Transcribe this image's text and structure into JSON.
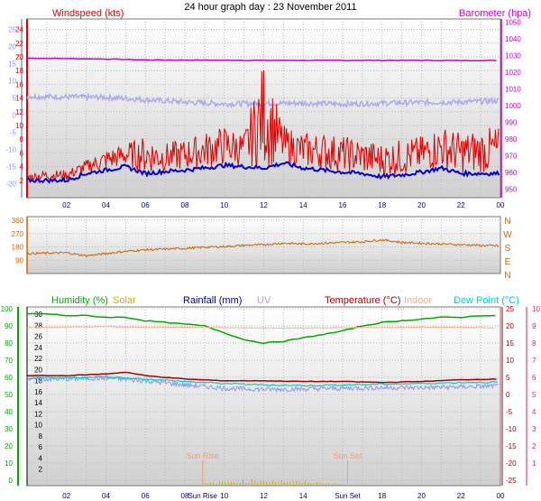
{
  "title": "24 hour graph day : 23 November 2011",
  "colors": {
    "wind": "#e00000",
    "gust_dark": "#0000d0",
    "temp_axis": "#8899ee",
    "baro": "#cc00cc",
    "baro_line": "#aaaaee",
    "dir": "#cc6600",
    "humidity": "#00aa00",
    "solar": "#ccaa00",
    "rainfall": "#000088",
    "uv": "#dd88dd",
    "temperature": "#aa0000",
    "indoor": "#f0b090",
    "dewpoint": "#00cccc",
    "pink_axis": "#dd2266",
    "rain_axis": "#000000",
    "sun": "#f0a070"
  },
  "chart_data": [
    {
      "type": "line",
      "title": "24 hour graph day : 23 November 2011",
      "left_label": "Windspeed (kts)",
      "right_label": "Barometer (hpa)",
      "wind_ticks": [
        "2",
        "4",
        "6",
        "8",
        "10",
        "12",
        "14",
        "16",
        "18",
        "20",
        "22",
        "24"
      ],
      "temp_ticks": [
        "-20",
        "-15",
        "-10",
        "-5",
        "0",
        "5",
        "10",
        "15",
        "20",
        "25"
      ],
      "baro_ticks": [
        "950",
        "960",
        "970",
        "980",
        "990",
        "1000",
        "1010",
        "1020",
        "1030",
        "1040",
        "1050"
      ],
      "x_ticks": [
        "02",
        "04",
        "06",
        "08",
        "10",
        "12",
        "14",
        "16",
        "18",
        "20",
        "22",
        "00"
      ],
      "ylim_wind": [
        0,
        25
      ],
      "ylim_baro": [
        945,
        1052
      ],
      "series": [
        {
          "key": "barometer",
          "unit": "hpa",
          "x": [
            0,
            2,
            4,
            6,
            8,
            10,
            12,
            14,
            16,
            18,
            20,
            22,
            23.9
          ],
          "values": [
            1028.5,
            1028.3,
            1028.0,
            1027.5,
            1027.4,
            1027.3,
            1027.2,
            1027.2,
            1027.2,
            1027.2,
            1027.2,
            1027.1,
            1027.1
          ]
        },
        {
          "key": "temperature_upper",
          "unit": "C",
          "x": [
            0,
            2,
            4,
            6,
            8,
            10,
            12,
            14,
            16,
            18,
            20,
            22,
            23.9
          ],
          "values": [
            5.5,
            5.3,
            5.2,
            4.5,
            3.8,
            3.3,
            3.4,
            3.5,
            3.2,
            3.5,
            3.7,
            3.8,
            4.2
          ]
        },
        {
          "key": "wind_avg",
          "unit": "kts",
          "x": [
            0,
            1,
            2,
            3,
            4,
            5,
            6,
            7,
            8,
            9,
            10,
            11,
            12,
            13,
            14,
            15,
            16,
            17,
            18,
            19,
            20,
            21,
            22,
            23,
            23.9
          ],
          "values": [
            2,
            2,
            2,
            3,
            3.5,
            4,
            3,
            3.3,
            3.5,
            3.8,
            4.2,
            4,
            3.8,
            4.5,
            3.8,
            3.5,
            3.2,
            3,
            2.5,
            2.8,
            3.2,
            3.8,
            3,
            3,
            3
          ]
        },
        {
          "key": "wind_gust",
          "unit": "kts",
          "x": [
            0,
            1,
            2,
            3,
            4,
            5,
            6,
            7,
            8,
            9,
            10,
            11,
            12,
            13,
            14,
            15,
            16,
            17,
            18,
            19,
            20,
            21,
            22,
            23,
            23.9
          ],
          "values": [
            3,
            3.5,
            3.5,
            5,
            6.5,
            7.5,
            8.5,
            7.5,
            8,
            9,
            10,
            9,
            19.5,
            10,
            9,
            9,
            8.5,
            8,
            7.5,
            8,
            8.5,
            10,
            9,
            9.5,
            10
          ]
        }
      ]
    },
    {
      "type": "line",
      "right_label": "N W S E N",
      "dir_ticks": [
        "90",
        "180",
        "270",
        "360"
      ],
      "compass": [
        "N",
        "W",
        "S",
        "E",
        "N"
      ],
      "ylim": [
        0,
        360
      ],
      "series": [
        {
          "key": "wind_direction",
          "unit": "deg",
          "x": [
            0,
            1,
            2,
            3,
            4,
            5,
            6,
            7,
            8,
            9,
            10,
            11,
            12,
            13,
            14,
            15,
            16,
            17,
            18,
            19,
            20,
            21,
            22,
            23,
            23.9
          ],
          "values": [
            135,
            138,
            140,
            120,
            135,
            150,
            160,
            165,
            170,
            178,
            182,
            190,
            195,
            205,
            200,
            205,
            210,
            215,
            228,
            210,
            205,
            200,
            195,
            190,
            188
          ]
        }
      ]
    },
    {
      "type": "line",
      "labels": {
        "humidity": "Humidity (%)",
        "solar": "Solar",
        "rainfall": "Rainfall (mm)",
        "uv": "UV",
        "temperature": "Temperature (°C)",
        "indoor": "Indoor",
        "dewpoint": "Dew Point (°C)"
      },
      "humidity_ticks": [
        "0",
        "10",
        "20",
        "30",
        "40",
        "50",
        "60",
        "70",
        "80",
        "90",
        "100"
      ],
      "rain_ticks": [
        "2",
        "4",
        "6",
        "8",
        "10",
        "12",
        "14",
        "16",
        "18",
        "20",
        "22",
        "24",
        "26",
        "28",
        "30"
      ],
      "temp_ticks": [
        "-25",
        "-20",
        "-15",
        "-10",
        "-5",
        "0",
        "5",
        "10",
        "15",
        "20",
        "25"
      ],
      "uv_ticks": [
        "1",
        "2",
        "3",
        "4",
        "5",
        "6",
        "7",
        "8",
        "9",
        "10"
      ],
      "x_ticks": [
        "02",
        "04",
        "06",
        "08",
        "Sun Rise",
        "10",
        "12",
        "14",
        "Sun Set",
        "18",
        "20",
        "22",
        "00"
      ],
      "sun_rise_label": "Sun Rise",
      "sun_set_label": "Sun Set",
      "sun_rise_hour": 8.9,
      "sun_set_hour": 16.25,
      "ylim_humidity": [
        0,
        100
      ],
      "ylim_temp": [
        -25,
        25
      ],
      "series": [
        {
          "key": "humidity",
          "unit": "%",
          "x": [
            0,
            1,
            2,
            3,
            4,
            5,
            6,
            7,
            8,
            9,
            10,
            11,
            12,
            13,
            14,
            15,
            16,
            17,
            18,
            19,
            20,
            21,
            22,
            23,
            23.9
          ],
          "values": [
            97,
            97,
            96,
            96,
            95,
            95,
            93,
            92,
            91,
            90,
            86,
            82,
            80,
            81,
            83,
            85,
            87,
            90,
            92,
            93,
            94,
            95,
            95,
            96,
            96
          ]
        },
        {
          "key": "indoor_temp",
          "unit": "C",
          "x": [
            0,
            4,
            6,
            8,
            10,
            12,
            14,
            16,
            18,
            20,
            22,
            23.9
          ],
          "values": [
            19.5,
            19.8,
            19.6,
            19.6,
            19.5,
            19.4,
            19.4,
            19.5,
            19.5,
            19.6,
            19.6,
            19.4
          ]
        },
        {
          "key": "temperature",
          "unit": "C",
          "x": [
            0,
            2,
            4,
            5,
            6,
            8,
            10,
            12,
            14,
            16,
            18,
            20,
            22,
            23.9
          ],
          "values": [
            5.5,
            5.5,
            6.0,
            6.5,
            5.5,
            4.5,
            4.0,
            4.0,
            3.8,
            3.8,
            3.5,
            3.8,
            4.3,
            4.5
          ]
        },
        {
          "key": "dewpoint",
          "unit": "C",
          "x": [
            0,
            2,
            4,
            6,
            8,
            10,
            12,
            14,
            16,
            18,
            20,
            22,
            23.9
          ],
          "values": [
            4.8,
            4.8,
            5.2,
            4.5,
            3.8,
            3.2,
            2.8,
            2.6,
            2.8,
            3.0,
            3.2,
            3.5,
            3.6
          ]
        },
        {
          "key": "uv_noise",
          "unit": "C",
          "x": [
            0,
            2,
            4,
            6,
            8,
            10,
            12,
            14,
            16,
            18,
            20,
            22,
            23.9
          ],
          "values": [
            4.5,
            4.5,
            4.8,
            4.0,
            2.8,
            1.8,
            1.5,
            1.6,
            1.8,
            2.0,
            2.0,
            2.2,
            2.5
          ]
        },
        {
          "key": "solar",
          "unit": "",
          "x": [
            9,
            10,
            11,
            12,
            13,
            14,
            15,
            16
          ],
          "values": [
            0.5,
            1.2,
            1.5,
            1.8,
            1.5,
            1.2,
            0.8,
            0.3
          ]
        }
      ]
    }
  ]
}
